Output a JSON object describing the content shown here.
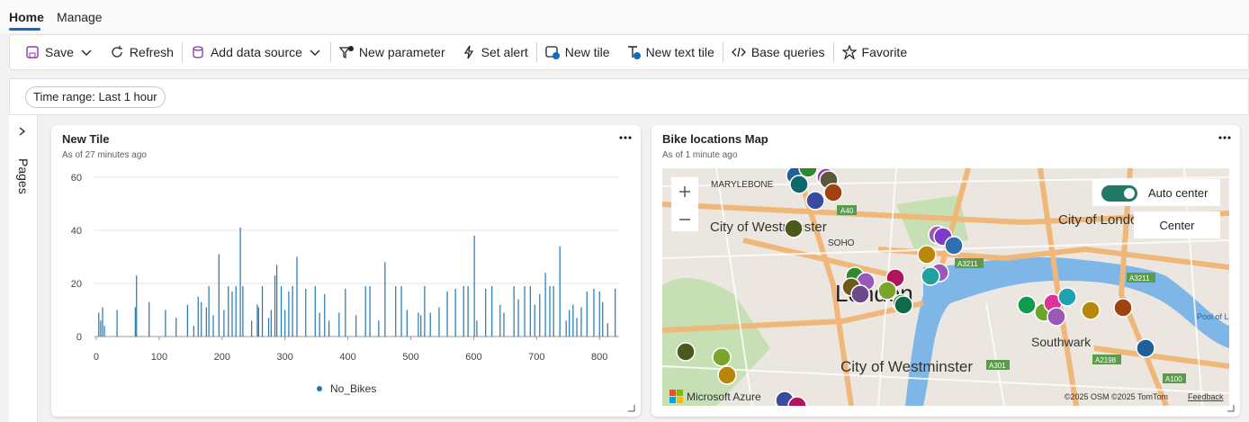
{
  "tabs": [
    "Home",
    "Manage"
  ],
  "toolbar": [
    "Save",
    "Refresh",
    "Add data source",
    "New parameter",
    "Set alert",
    "New tile",
    "New text tile",
    "Base queries",
    "Favorite"
  ],
  "filter": {
    "label": "Time range:",
    "value": "Last 1 hour"
  },
  "sidebar": "Pages",
  "map_tile": {
    "title": "Bike locations Map",
    "subtitle": "As of 1 minute ago",
    "toggle": "Auto center",
    "button": "Center",
    "labels": [
      "MARYLEBONE",
      "City of Westminster",
      "SOHO",
      "City of London",
      "London",
      "City of Westminster",
      "Southwark",
      "Pool of London",
      "A40",
      "A3211",
      "A3211",
      "A301",
      "A2198",
      "A100"
    ],
    "brand": "Microsoft Azure",
    "attribution": "©2025 OSM  ©2025 TomTom",
    "feedback": "Feedback"
  },
  "chart_data": {
    "type": "spike",
    "title": "New Tile",
    "subtitle": "As of 27 minutes ago",
    "series": [
      {
        "name": "No_Bikes",
        "color": "#1f77b4",
        "x": [
          4,
          7,
          10,
          13,
          33,
          62,
          64,
          84,
          110,
          127,
          145,
          155,
          162,
          167,
          175,
          179,
          186,
          195,
          203,
          210,
          216,
          222,
          229,
          233,
          247,
          256,
          258,
          264,
          274,
          278,
          284,
          287,
          294,
          300,
          306,
          312,
          319,
          333,
          348,
          355,
          363,
          370,
          386,
          396,
          413,
          428,
          435,
          449,
          459,
          476,
          485,
          494,
          512,
          516,
          522,
          531,
          545,
          558,
          571,
          584,
          591,
          601,
          605,
          619,
          629,
          642,
          648,
          664,
          671,
          681,
          690,
          697,
          705,
          714,
          721,
          727,
          737,
          747,
          752,
          758,
          764,
          771,
          780,
          791,
          800,
          805,
          813,
          825
        ],
        "values": [
          9,
          6,
          11,
          4,
          10,
          11,
          23,
          13,
          10,
          7,
          12,
          4,
          15,
          13,
          11,
          19,
          8,
          31,
          10,
          19,
          17,
          19,
          41,
          19,
          6,
          12,
          11,
          19,
          7,
          10,
          23,
          27,
          19,
          10,
          17,
          19,
          30,
          18,
          19,
          9,
          16,
          6,
          9,
          18,
          8,
          19,
          19,
          6,
          28,
          19,
          19,
          10,
          9,
          8,
          19,
          9,
          11,
          17,
          18,
          19,
          19,
          38,
          6,
          18,
          19,
          12,
          9,
          19,
          14,
          19,
          19,
          12,
          16,
          24,
          19,
          19,
          34,
          6,
          10,
          12,
          7,
          11,
          17,
          18,
          17,
          13,
          5,
          18
        ]
      }
    ],
    "xlim": [
      -3,
      831
    ],
    "xticks": [
      0,
      100,
      200,
      300,
      400,
      500,
      600,
      700,
      800
    ],
    "ylim": [
      0,
      60
    ],
    "yticks": [
      0,
      20,
      40,
      60
    ],
    "grid": true,
    "legend": "bottom"
  }
}
